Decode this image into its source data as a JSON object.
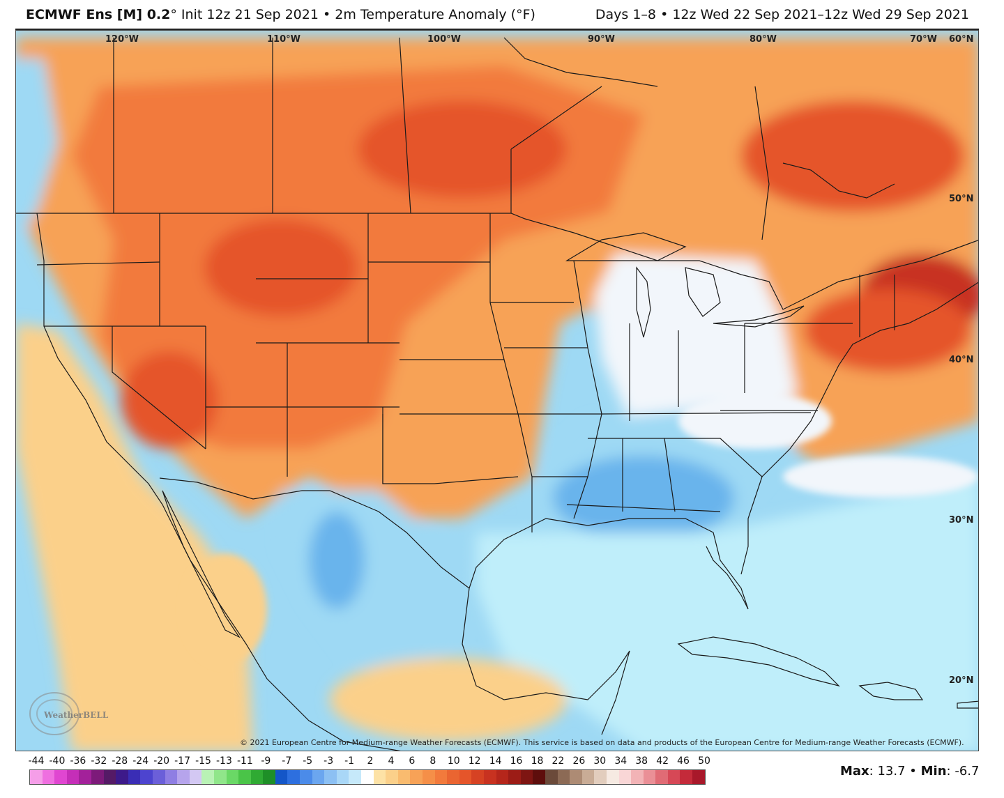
{
  "header": {
    "model": "ECMWF Ens [M] 0.2",
    "degree_sign": "°",
    "init": "Init 12z 21 Sep 2021",
    "bullet": "•",
    "field": "2m Temperature Anomaly (°F)",
    "days": "Days 1–8",
    "period": "12z Wed 22 Sep 2021–12z Wed 29 Sep 2021"
  },
  "map": {
    "longitude_labels": [
      "120°W",
      "110°W",
      "100°W",
      "90°W",
      "80°W",
      "70°W",
      "60°N"
    ],
    "latitude_labels": [
      "50°N",
      "40°N",
      "30°N",
      "20°N"
    ],
    "colors": {
      "ocean_cool": "#bfeefa",
      "light_blue": "#9ed9f4",
      "blue": "#69b4ec",
      "deep_blue": "#3f86dc",
      "neutral": "#f2f6fb",
      "light_orange": "#fbd08a",
      "orange": "#f7a257",
      "dark_orange": "#f27a3c",
      "red_orange": "#e5552a",
      "red": "#c83220",
      "borders": "#1a1a1a"
    },
    "logo": "WeatherBELL",
    "copyright": "© 2021 European Centre for Medium-range Weather Forecasts (ECMWF). This service is based on data and products of the European Centre for Medium-range Weather Forecasts (ECMWF)."
  },
  "scale": {
    "labels": [
      "-44",
      "-40",
      "-36",
      "-32",
      "-28",
      "-24",
      "-20",
      "-17",
      "-15",
      "-13",
      "-11",
      "-9",
      "-7",
      "-5",
      "-3",
      "-1",
      "2",
      "4",
      "6",
      "8",
      "10",
      "12",
      "14",
      "16",
      "18",
      "22",
      "26",
      "30",
      "34",
      "38",
      "42",
      "46",
      "50"
    ],
    "colors": [
      "#f59ee8",
      "#ef6fe0",
      "#e046d1",
      "#c52eb8",
      "#a3219a",
      "#7d1a7a",
      "#551a66",
      "#3d1a8a",
      "#3a2db5",
      "#4d44cf",
      "#6b5fd9",
      "#8f7ee3",
      "#b6a4ec",
      "#d3c8f3",
      "#b9f2b5",
      "#90e68a",
      "#6ad866",
      "#4ac448",
      "#2faa33",
      "#1e8f27",
      "#1456c8",
      "#2d6fdf",
      "#4b8be9",
      "#6ba6ef",
      "#8cc0f3",
      "#a9d7f7",
      "#c6e9fa",
      "#ffffff",
      "#fde2a6",
      "#fbd08a",
      "#f9bb6f",
      "#f7a257",
      "#f58f48",
      "#f27a3c",
      "#ea6531",
      "#e5552a",
      "#d64223",
      "#c83220",
      "#b5261b",
      "#9c1c16",
      "#7e1512",
      "#5e0e0c",
      "#6b4a3a",
      "#8c6a55",
      "#ad8b74",
      "#c9ac96",
      "#e2cdbd",
      "#f6eae2",
      "#f9d6d6",
      "#f2b3b6",
      "#ea8f96",
      "#e06b75",
      "#d64856",
      "#c42a3a",
      "#a8182a"
    ],
    "max_label": "Max",
    "max_value": "13.7",
    "min_label": "Min",
    "min_value": "-6.7"
  }
}
